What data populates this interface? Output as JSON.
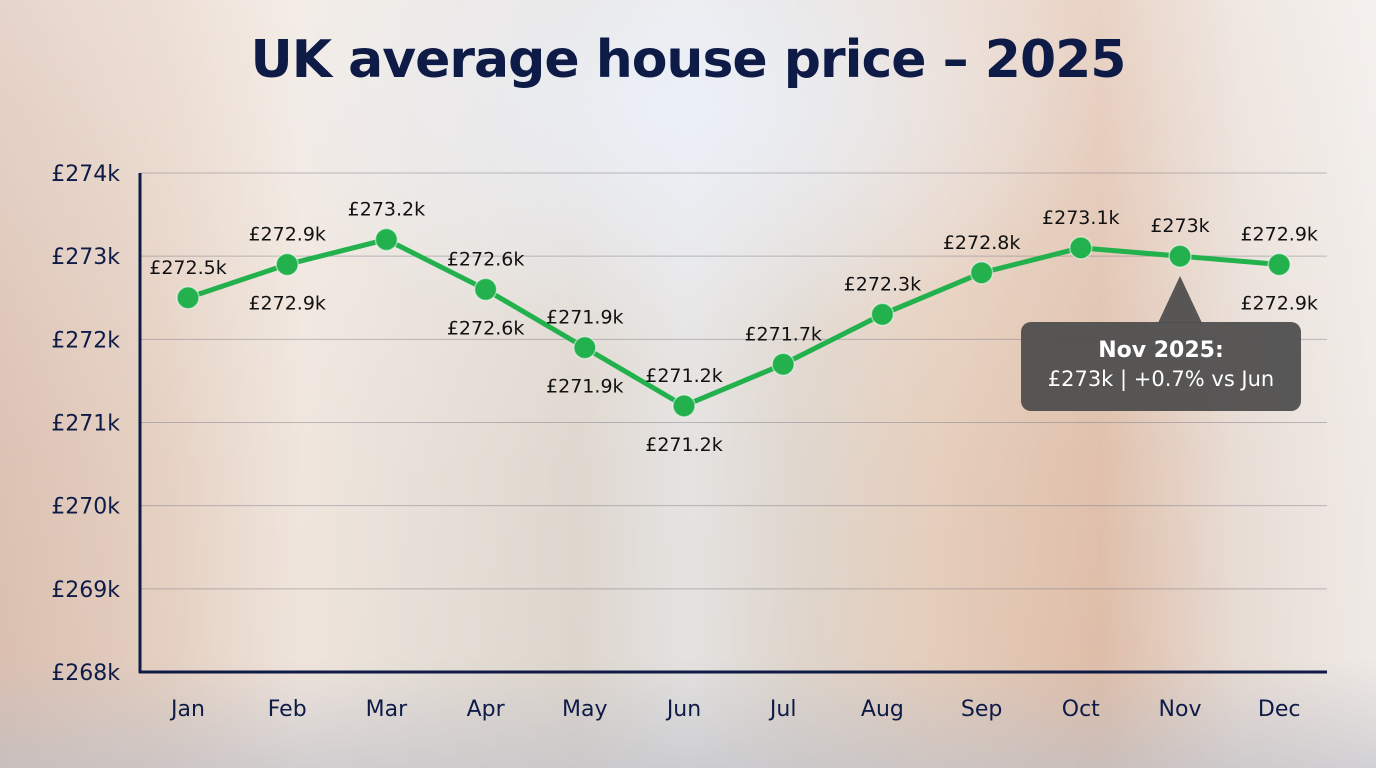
{
  "chart_data": {
    "type": "line",
    "title": "UK average house price – 2025",
    "categories": [
      "Jan",
      "Feb",
      "Mar",
      "Apr",
      "May",
      "Jun",
      "Jul",
      "Aug",
      "Sep",
      "Oct",
      "Nov",
      "Dec"
    ],
    "values": [
      272.5,
      272.9,
      273.2,
      272.6,
      271.9,
      271.2,
      271.7,
      272.3,
      272.8,
      273.1,
      273.0,
      272.9
    ],
    "unit": "£k",
    "ylim": [
      268,
      274
    ],
    "yticks": [
      "£268k",
      "£269k",
      "£270k",
      "£271k",
      "£272k",
      "£273k",
      "£274k"
    ],
    "grid": true,
    "line_color": "#22b14c",
    "title_color": "#0e1b47",
    "data_labels": [
      {
        "above": "£272.5k"
      },
      {
        "above": "£272.9k",
        "below": "£272.9k"
      },
      {
        "above": "£273.2k"
      },
      {
        "above": "£272.6k",
        "below": "£272.6k"
      },
      {
        "above": "£271.9k",
        "below": "£271.9k"
      },
      {
        "above": "£271.2k",
        "below": "£271.2k"
      },
      {
        "above": "£271.7k"
      },
      {
        "above": "£272.3k"
      },
      {
        "above": "£272.8k"
      },
      {
        "above": "£273.1k"
      },
      {
        "above": "£273k"
      },
      {
        "above": "£272.9k",
        "below": "£272.9k"
      }
    ],
    "tooltip": {
      "title": "Nov 2025:",
      "text": "£273k | +0.7% vs Jun",
      "category": "Nov"
    }
  }
}
